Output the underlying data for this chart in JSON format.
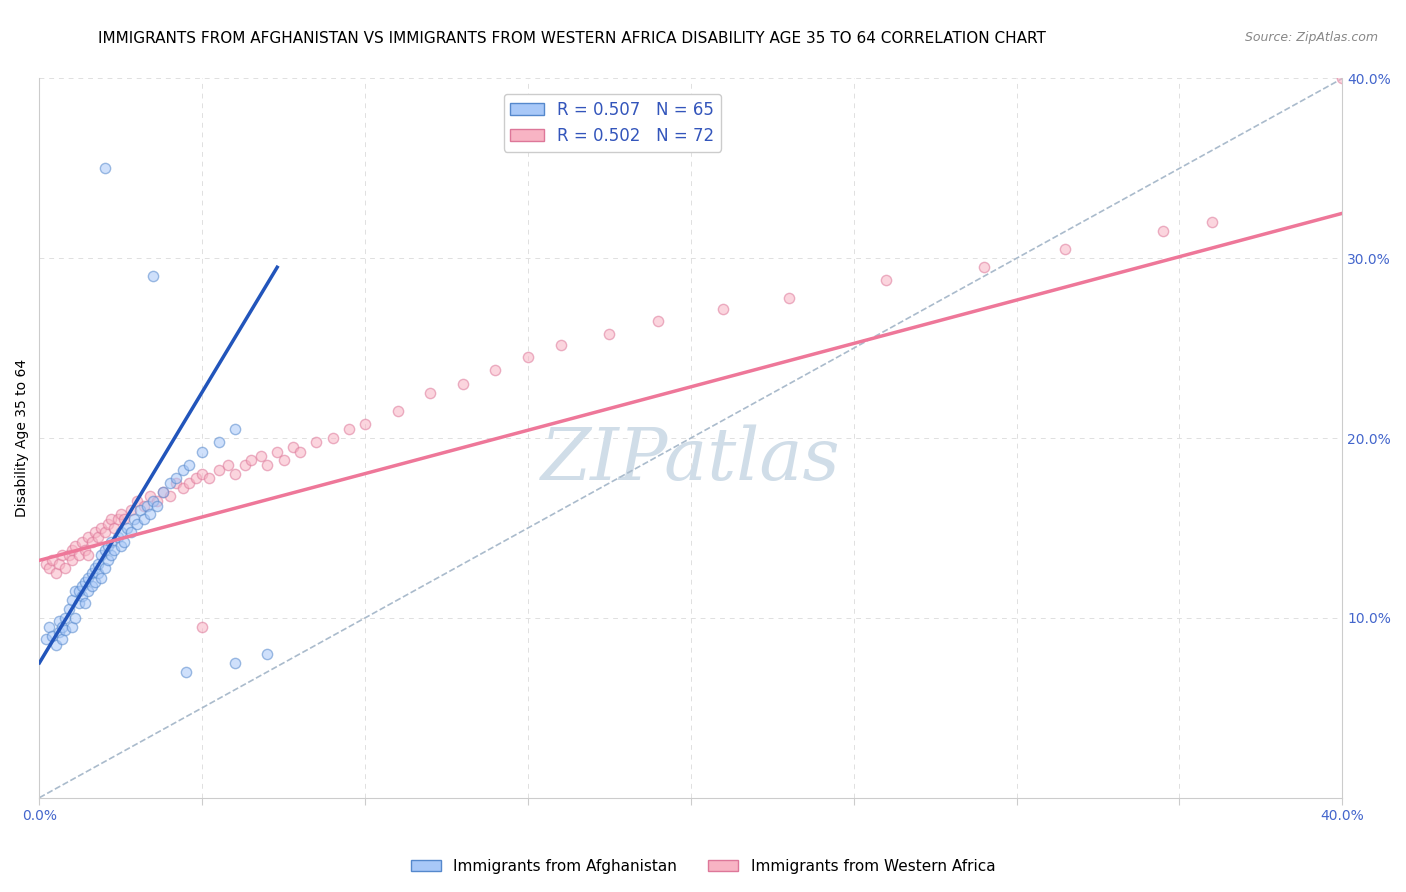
{
  "title": "IMMIGRANTS FROM AFGHANISTAN VS IMMIGRANTS FROM WESTERN AFRICA DISABILITY AGE 35 TO 64 CORRELATION CHART",
  "source": "Source: ZipAtlas.com",
  "ylabel": "Disability Age 35 to 64",
  "xlim": [
    0.0,
    0.4
  ],
  "ylim": [
    0.0,
    0.4
  ],
  "afghanistan_color": "#a8c8f8",
  "western_africa_color": "#f8b4c4",
  "afghanistan_edge_color": "#5588cc",
  "western_africa_edge_color": "#dd7799",
  "afghanistan_line_color": "#2255bb",
  "western_africa_line_color": "#ee7799",
  "diagonal_line_color": "#aabbcc",
  "watermark_color": "#d0dde8",
  "legend_R_N_color": "#3355bb",
  "R_afghanistan": 0.507,
  "N_afghanistan": 65,
  "R_western_africa": 0.502,
  "N_western_africa": 72,
  "afghanistan_scatter_x": [
    0.002,
    0.003,
    0.004,
    0.005,
    0.006,
    0.006,
    0.007,
    0.007,
    0.008,
    0.008,
    0.009,
    0.01,
    0.01,
    0.011,
    0.011,
    0.012,
    0.012,
    0.013,
    0.013,
    0.014,
    0.014,
    0.015,
    0.015,
    0.016,
    0.016,
    0.017,
    0.017,
    0.018,
    0.018,
    0.019,
    0.019,
    0.02,
    0.02,
    0.021,
    0.021,
    0.022,
    0.022,
    0.023,
    0.024,
    0.025,
    0.025,
    0.026,
    0.027,
    0.028,
    0.029,
    0.03,
    0.031,
    0.032,
    0.033,
    0.034,
    0.035,
    0.036,
    0.038,
    0.04,
    0.042,
    0.044,
    0.046,
    0.05,
    0.055,
    0.06,
    0.02,
    0.035,
    0.045,
    0.06,
    0.07
  ],
  "afghanistan_scatter_y": [
    0.088,
    0.095,
    0.09,
    0.085,
    0.092,
    0.098,
    0.088,
    0.095,
    0.1,
    0.093,
    0.105,
    0.11,
    0.095,
    0.115,
    0.1,
    0.108,
    0.115,
    0.112,
    0.118,
    0.12,
    0.108,
    0.115,
    0.122,
    0.118,
    0.125,
    0.12,
    0.128,
    0.125,
    0.13,
    0.122,
    0.135,
    0.128,
    0.138,
    0.132,
    0.14,
    0.135,
    0.142,
    0.138,
    0.145,
    0.14,
    0.148,
    0.142,
    0.15,
    0.148,
    0.155,
    0.152,
    0.16,
    0.155,
    0.162,
    0.158,
    0.165,
    0.162,
    0.17,
    0.175,
    0.178,
    0.182,
    0.185,
    0.192,
    0.198,
    0.205,
    0.35,
    0.29,
    0.07,
    0.075,
    0.08
  ],
  "western_africa_scatter_x": [
    0.002,
    0.003,
    0.004,
    0.005,
    0.006,
    0.007,
    0.008,
    0.009,
    0.01,
    0.01,
    0.011,
    0.012,
    0.013,
    0.014,
    0.015,
    0.015,
    0.016,
    0.017,
    0.018,
    0.019,
    0.02,
    0.021,
    0.022,
    0.023,
    0.024,
    0.025,
    0.026,
    0.028,
    0.03,
    0.032,
    0.034,
    0.036,
    0.038,
    0.04,
    0.042,
    0.044,
    0.046,
    0.048,
    0.05,
    0.052,
    0.055,
    0.058,
    0.06,
    0.063,
    0.065,
    0.068,
    0.07,
    0.073,
    0.075,
    0.078,
    0.08,
    0.085,
    0.09,
    0.095,
    0.1,
    0.11,
    0.12,
    0.13,
    0.14,
    0.15,
    0.16,
    0.175,
    0.19,
    0.21,
    0.23,
    0.26,
    0.29,
    0.315,
    0.345,
    0.36,
    0.05,
    0.4
  ],
  "western_africa_scatter_y": [
    0.13,
    0.128,
    0.132,
    0.125,
    0.13,
    0.135,
    0.128,
    0.135,
    0.138,
    0.132,
    0.14,
    0.135,
    0.142,
    0.138,
    0.145,
    0.135,
    0.142,
    0.148,
    0.145,
    0.15,
    0.148,
    0.152,
    0.155,
    0.15,
    0.155,
    0.158,
    0.155,
    0.16,
    0.165,
    0.162,
    0.168,
    0.165,
    0.17,
    0.168,
    0.175,
    0.172,
    0.175,
    0.178,
    0.18,
    0.178,
    0.182,
    0.185,
    0.18,
    0.185,
    0.188,
    0.19,
    0.185,
    0.192,
    0.188,
    0.195,
    0.192,
    0.198,
    0.2,
    0.205,
    0.208,
    0.215,
    0.225,
    0.23,
    0.238,
    0.245,
    0.252,
    0.258,
    0.265,
    0.272,
    0.278,
    0.288,
    0.295,
    0.305,
    0.315,
    0.32,
    0.095,
    0.4
  ],
  "background_color": "#ffffff",
  "grid_color": "#e0e0e0",
  "title_fontsize": 11,
  "axis_label_fontsize": 10,
  "tick_fontsize": 10,
  "legend_fontsize": 12,
  "watermark_text": "ZIPatlas",
  "scatter_size": 55,
  "scatter_alpha": 0.55,
  "scatter_linewidth": 1.0,
  "afg_line_x_start": 0.0,
  "afg_line_x_end": 0.073,
  "waf_line_x_start": 0.0,
  "waf_line_x_end": 0.4,
  "afg_line_y_start": 0.075,
  "afg_line_y_end": 0.295,
  "waf_line_y_start": 0.132,
  "waf_line_y_end": 0.325
}
